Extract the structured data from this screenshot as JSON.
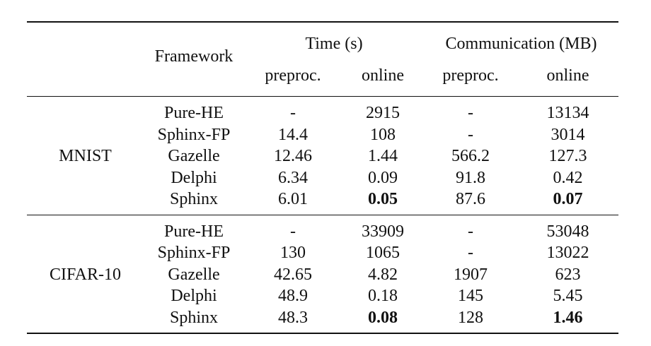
{
  "table": {
    "header": {
      "framework": "Framework",
      "time_group": "Time (s)",
      "comm_group": "Communication (MB)",
      "time_preproc": "preproc.",
      "time_online": "online",
      "comm_preproc": "preproc.",
      "comm_online": "online"
    },
    "groups": [
      {
        "dataset": "MNIST",
        "rows": [
          {
            "framework": "Pure-HE",
            "time_preproc": "-",
            "time_online": "2915",
            "comm_preproc": "-",
            "comm_online": "13134"
          },
          {
            "framework": "Sphinx-FP",
            "time_preproc": "14.4",
            "time_online": "108",
            "comm_preproc": "-",
            "comm_online": "3014"
          },
          {
            "framework": "Gazelle",
            "time_preproc": "12.46",
            "time_online": "1.44",
            "comm_preproc": "566.2",
            "comm_online": "127.3"
          },
          {
            "framework": "Delphi",
            "time_preproc": "6.34",
            "time_online": "0.09",
            "comm_preproc": "91.8",
            "comm_online": "0.42"
          },
          {
            "framework": "Sphinx",
            "time_preproc": "6.01",
            "time_online": "0.05",
            "comm_preproc": "87.6",
            "comm_online": "0.07"
          }
        ]
      },
      {
        "dataset": "CIFAR-10",
        "rows": [
          {
            "framework": "Pure-HE",
            "time_preproc": "-",
            "time_online": "33909",
            "comm_preproc": "-",
            "comm_online": "53048"
          },
          {
            "framework": "Sphinx-FP",
            "time_preproc": "130",
            "time_online": "1065",
            "comm_preproc": "-",
            "comm_online": "13022"
          },
          {
            "framework": "Gazelle",
            "time_preproc": "42.65",
            "time_online": "4.82",
            "comm_preproc": "1907",
            "comm_online": "623"
          },
          {
            "framework": "Delphi",
            "time_preproc": "48.9",
            "time_online": "0.18",
            "comm_preproc": "145",
            "comm_online": "5.45"
          },
          {
            "framework": "Sphinx",
            "time_preproc": "48.3",
            "time_online": "0.08",
            "comm_preproc": "128",
            "comm_online": "1.46"
          }
        ]
      }
    ]
  }
}
